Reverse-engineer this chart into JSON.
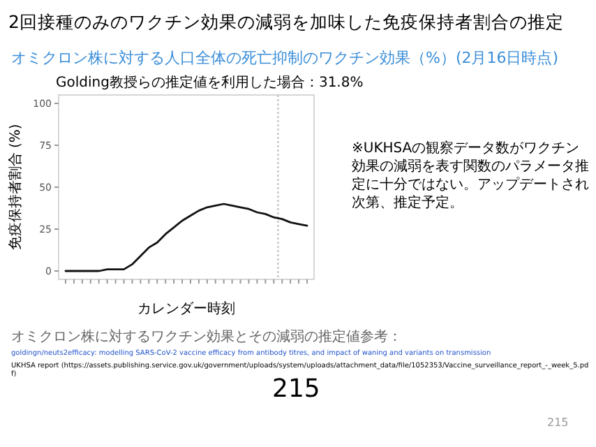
{
  "chart_data": {
    "type": "line",
    "title": "2回接種のみのワクチン効果の減弱を加味した免疫保持者割合の推定",
    "subtitle": "オミクロン株に対する人口全体の死亡抑制のワクチン効果（%）(2月16日時点)",
    "annotations": [
      "Golding教授らの推定値を利用した場合：31.8%",
      "※UKHSAの観察データ数がワクチン効果の減弱を表す関数のパラメータ推定に十分ではない。アップデートされ次第、推定予定。",
      "オミクロン株に対するワクチン効果とその減弱の推定値参考：",
      "goldingn/neuts2efficacy: modelling SARS-CoV-2 vaccine efficacy from antibody titres, and impact of waning and variants on transmission",
      "UKHSA report (https://assets.publishing.service.gov.uk/government/uploads/system/uploads/attachment_data/file/1052353/Vaccine_surveillance_report_-_week_5.pdf)",
      "215",
      "215"
    ],
    "xlabel": "カレンダー時刻",
    "ylabel": "免疫保持者割合 (%)",
    "categories": [
      null,
      null,
      null,
      null,
      null,
      null,
      null,
      null,
      null,
      null,
      null,
      null,
      null,
      null,
      null,
      null,
      null,
      null,
      null,
      null,
      null,
      null,
      null,
      null,
      null,
      null,
      null,
      null,
      null,
      null
    ],
    "series": [
      {
        "color": "#111111",
        "values": [
          0,
          0,
          0,
          0,
          0,
          1,
          1,
          1,
          4,
          9,
          14,
          17,
          22,
          26,
          30,
          33,
          36,
          38,
          39,
          40,
          39,
          38,
          37,
          35,
          34,
          32,
          31,
          29,
          28,
          27
        ]
      }
    ],
    "ylim": [
      -5,
      105
    ],
    "yticks": [
      0,
      25,
      50,
      75,
      100
    ]
  }
}
